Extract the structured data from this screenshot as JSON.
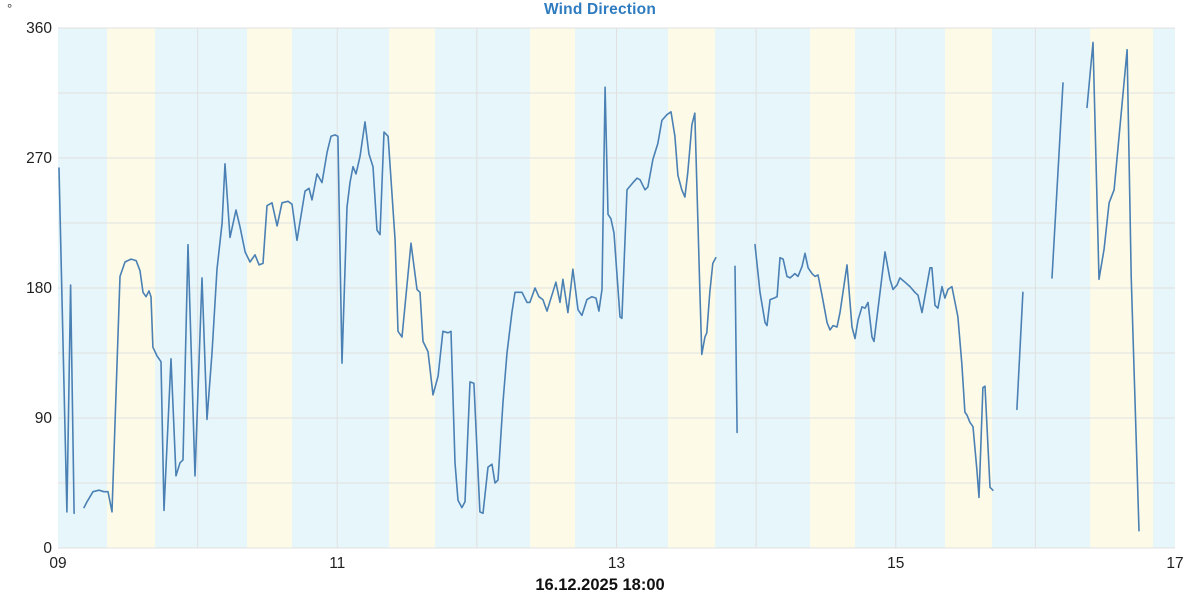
{
  "header": {
    "title": "Wind Direction",
    "unit": "°"
  },
  "footer": {
    "date_label": "16.12.2025 18:00"
  },
  "colors": {
    "title": "#2e7bbf",
    "axis_text": "#1f1f1f",
    "line": "#4a80b4",
    "band_blue": "#e7f6fa",
    "band_cream": "#fdfbe8",
    "gridline": "#e0e0e0",
    "plot_background": "#e7f6fa"
  },
  "chart_data": {
    "type": "line",
    "title": "Wind Direction",
    "ylabel": "°",
    "xlabel": "",
    "annotation": "16.12.2025 18:00",
    "legend": "none",
    "grid": "on",
    "x_axis": {
      "min_hour": 9,
      "max_hour": 17,
      "ticks": [
        {
          "value": 9,
          "label": "09"
        },
        {
          "value": 11,
          "label": "11"
        },
        {
          "value": 13,
          "label": "13"
        },
        {
          "value": 15,
          "label": "15"
        },
        {
          "value": 17,
          "label": "17"
        }
      ],
      "gridline_step_hours": 1
    },
    "y_axis": {
      "min": 0,
      "max": 360,
      "ticks": [
        {
          "value": 0,
          "label": "0"
        },
        {
          "value": 90,
          "label": "90"
        },
        {
          "value": 180,
          "label": "180"
        },
        {
          "value": 270,
          "label": "270"
        },
        {
          "value": 360,
          "label": "360"
        }
      ],
      "gridline_step": 45
    },
    "background_bands": {
      "base_color_key": "band_blue",
      "cream_ranges_hours": [
        [
          9.351,
          9.695
        ],
        [
          10.354,
          10.676
        ],
        [
          11.371,
          11.7
        ],
        [
          12.381,
          12.703
        ],
        [
          13.369,
          13.706
        ],
        [
          14.386,
          14.708
        ],
        [
          15.353,
          15.69
        ],
        [
          16.392,
          16.843
        ]
      ]
    },
    "series": [
      {
        "name": "wind_direction_deg",
        "color_key": "line",
        "segments": [
          [
            [
              9.007,
              263
            ],
            [
              9.064,
              25
            ],
            [
              9.09,
              182
            ],
            [
              9.115,
              24
            ]
          ],
          [
            [
              9.186,
              28
            ],
            [
              9.208,
              32
            ],
            [
              9.251,
              39
            ],
            [
              9.294,
              40
            ],
            [
              9.329,
              39
            ],
            [
              9.358,
              39
            ],
            [
              9.387,
              25
            ],
            [
              9.444,
              188
            ],
            [
              9.48,
              198
            ],
            [
              9.523,
              200
            ],
            [
              9.559,
              199
            ],
            [
              9.587,
              192
            ],
            [
              9.609,
              177
            ],
            [
              9.63,
              174
            ],
            [
              9.652,
              178
            ],
            [
              9.666,
              174
            ],
            [
              9.68,
              139
            ],
            [
              9.709,
              133
            ],
            [
              9.738,
              129
            ],
            [
              9.759,
              26
            ],
            [
              9.809,
              131
            ],
            [
              9.845,
              50
            ],
            [
              9.874,
              59
            ],
            [
              9.895,
              61
            ],
            [
              9.931,
              210
            ],
            [
              9.981,
              50
            ],
            [
              10.031,
              187
            ],
            [
              10.067,
              89
            ],
            [
              10.103,
              135
            ],
            [
              10.139,
              193
            ],
            [
              10.175,
              225
            ],
            [
              10.196,
              266
            ],
            [
              10.232,
              215
            ],
            [
              10.275,
              234
            ],
            [
              10.304,
              222
            ],
            [
              10.34,
              205
            ],
            [
              10.375,
              198
            ],
            [
              10.411,
              203
            ],
            [
              10.44,
              196
            ],
            [
              10.468,
              197
            ],
            [
              10.497,
              237
            ],
            [
              10.533,
              239
            ],
            [
              10.569,
              223
            ],
            [
              10.604,
              239
            ],
            [
              10.647,
              240
            ],
            [
              10.676,
              238
            ],
            [
              10.712,
              213
            ],
            [
              10.769,
              247
            ],
            [
              10.798,
              249
            ],
            [
              10.819,
              241
            ],
            [
              10.855,
              259
            ],
            [
              10.891,
              253
            ],
            [
              10.927,
              274
            ],
            [
              10.955,
              285
            ],
            [
              10.984,
              286
            ],
            [
              11.005,
              285
            ],
            [
              11.034,
              128
            ],
            [
              11.07,
              236
            ],
            [
              11.091,
              253
            ],
            [
              11.113,
              264
            ],
            [
              11.134,
              259
            ],
            [
              11.163,
              271
            ],
            [
              11.199,
              295
            ],
            [
              11.227,
              273
            ],
            [
              11.256,
              264
            ],
            [
              11.285,
              220
            ],
            [
              11.306,
              217
            ],
            [
              11.335,
              288
            ],
            [
              11.364,
              285
            ],
            [
              11.414,
              213
            ],
            [
              11.435,
              150
            ],
            [
              11.464,
              146
            ],
            [
              11.528,
              211
            ],
            [
              11.571,
              179
            ],
            [
              11.593,
              177
            ],
            [
              11.614,
              143
            ],
            [
              11.65,
              136
            ],
            [
              11.686,
              106
            ],
            [
              11.722,
              119
            ],
            [
              11.757,
              150
            ],
            [
              11.793,
              149
            ],
            [
              11.815,
              150
            ],
            [
              11.843,
              59
            ],
            [
              11.865,
              33
            ],
            [
              11.893,
              28
            ],
            [
              11.915,
              32
            ],
            [
              11.951,
              115
            ],
            [
              11.979,
              114
            ],
            [
              12.022,
              25
            ],
            [
              12.044,
              24
            ],
            [
              12.08,
              56
            ],
            [
              12.108,
              58
            ],
            [
              12.13,
              45
            ],
            [
              12.151,
              47
            ],
            [
              12.187,
              101
            ],
            [
              12.216,
              135
            ],
            [
              12.251,
              163
            ],
            [
              12.273,
              177
            ],
            [
              12.294,
              177
            ],
            [
              12.323,
              177
            ],
            [
              12.359,
              170
            ],
            [
              12.38,
              170
            ],
            [
              12.416,
              180
            ],
            [
              12.444,
              174
            ],
            [
              12.473,
              172
            ],
            [
              12.502,
              164
            ],
            [
              12.537,
              175
            ],
            [
              12.566,
              184
            ],
            [
              12.595,
              170
            ],
            [
              12.616,
              186
            ],
            [
              12.652,
              163
            ],
            [
              12.688,
              193
            ],
            [
              12.724,
              165
            ],
            [
              12.752,
              161
            ],
            [
              12.788,
              172
            ],
            [
              12.824,
              174
            ],
            [
              12.853,
              173
            ],
            [
              12.874,
              164
            ],
            [
              12.896,
              179
            ],
            [
              12.918,
              319
            ],
            [
              12.939,
              231
            ],
            [
              12.96,
              228
            ],
            [
              12.982,
              218
            ],
            [
              13.025,
              160
            ],
            [
              13.039,
              159
            ],
            [
              13.075,
              248
            ],
            [
              13.118,
              253
            ],
            [
              13.147,
              256
            ],
            [
              13.168,
              255
            ],
            [
              13.204,
              248
            ],
            [
              13.225,
              250
            ],
            [
              13.261,
              269
            ],
            [
              13.296,
              280
            ],
            [
              13.325,
              296
            ],
            [
              13.361,
              300
            ],
            [
              13.39,
              302
            ],
            [
              13.418,
              285
            ],
            [
              13.44,
              258
            ],
            [
              13.468,
              248
            ],
            [
              13.49,
              243
            ],
            [
              13.511,
              260
            ],
            [
              13.54,
              293
            ],
            [
              13.561,
              301
            ],
            [
              13.583,
              226
            ],
            [
              13.597,
              177
            ],
            [
              13.611,
              134
            ],
            [
              13.633,
              146
            ],
            [
              13.647,
              149
            ],
            [
              13.668,
              177
            ],
            [
              13.69,
              197
            ],
            [
              13.711,
              201
            ]
          ],
          [
            [
              13.849,
              195
            ],
            [
              13.864,
              80
            ]
          ],
          [
            [
              13.992,
              210
            ],
            [
              14.028,
              177
            ],
            [
              14.064,
              156
            ],
            [
              14.078,
              154
            ],
            [
              14.1,
              172
            ],
            [
              14.128,
              173
            ],
            [
              14.15,
              174
            ],
            [
              14.171,
              201
            ],
            [
              14.193,
              200
            ],
            [
              14.221,
              188
            ],
            [
              14.243,
              187
            ],
            [
              14.278,
              190
            ],
            [
              14.3,
              188
            ],
            [
              14.329,
              195
            ],
            [
              14.35,
              204
            ],
            [
              14.372,
              194
            ],
            [
              14.4,
              190
            ],
            [
              14.422,
              188
            ],
            [
              14.443,
              189
            ],
            [
              14.472,
              175
            ],
            [
              14.508,
              156
            ],
            [
              14.529,
              151
            ],
            [
              14.551,
              154
            ],
            [
              14.579,
              153
            ],
            [
              14.601,
              163
            ],
            [
              14.651,
              196
            ],
            [
              14.687,
              153
            ],
            [
              14.708,
              145
            ],
            [
              14.73,
              158
            ],
            [
              14.758,
              167
            ],
            [
              14.78,
              166
            ],
            [
              14.801,
              170
            ],
            [
              14.83,
              146
            ],
            [
              14.844,
              143
            ],
            [
              14.923,
              205
            ],
            [
              14.959,
              186
            ],
            [
              14.98,
              179
            ],
            [
              15.009,
              182
            ],
            [
              15.03,
              187
            ],
            [
              15.066,
              184
            ],
            [
              15.102,
              181
            ],
            [
              15.137,
              177
            ],
            [
              15.159,
              175
            ],
            [
              15.188,
              163
            ],
            [
              15.245,
              194
            ],
            [
              15.259,
              194
            ],
            [
              15.281,
              168
            ],
            [
              15.302,
              166
            ],
            [
              15.331,
              181
            ],
            [
              15.352,
              173
            ],
            [
              15.374,
              179
            ],
            [
              15.402,
              181
            ],
            [
              15.445,
              160
            ],
            [
              15.474,
              127
            ],
            [
              15.495,
              94
            ],
            [
              15.51,
              92
            ],
            [
              15.531,
              87
            ],
            [
              15.553,
              84
            ],
            [
              15.581,
              54
            ],
            [
              15.596,
              35
            ],
            [
              15.624,
              111
            ],
            [
              15.639,
              112
            ],
            [
              15.675,
              42
            ],
            [
              15.696,
              40
            ]
          ],
          [
            [
              15.868,
              96
            ],
            [
              15.911,
              177
            ]
          ],
          [
            [
              16.119,
              187
            ],
            [
              16.198,
              322
            ]
          ],
          [
            [
              16.37,
              305
            ],
            [
              16.413,
              350
            ],
            [
              16.456,
              186
            ],
            [
              16.492,
              207
            ],
            [
              16.528,
              239
            ],
            [
              16.564,
              248
            ],
            [
              16.657,
              345
            ],
            [
              16.686,
              188
            ],
            [
              16.742,
              12
            ]
          ]
        ]
      }
    ]
  }
}
